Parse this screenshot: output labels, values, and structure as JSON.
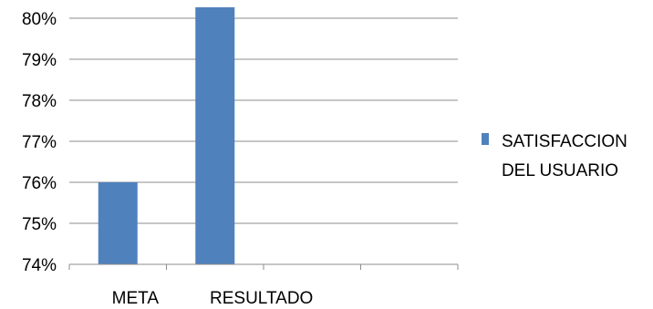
{
  "chart_data": {
    "type": "bar",
    "categories": [
      "META",
      "RESULTADO",
      "",
      ""
    ],
    "series": [
      {
        "name": "SATISFACCION DEL USUARIO",
        "values": [
          76,
          80.3,
          null,
          null
        ],
        "color": "#4f81bd"
      }
    ],
    "ylim": [
      74,
      80
    ],
    "yticks": [
      "74%",
      "75%",
      "76%",
      "77%",
      "78%",
      "79%",
      "80%"
    ],
    "grid": true,
    "legend": "right"
  }
}
